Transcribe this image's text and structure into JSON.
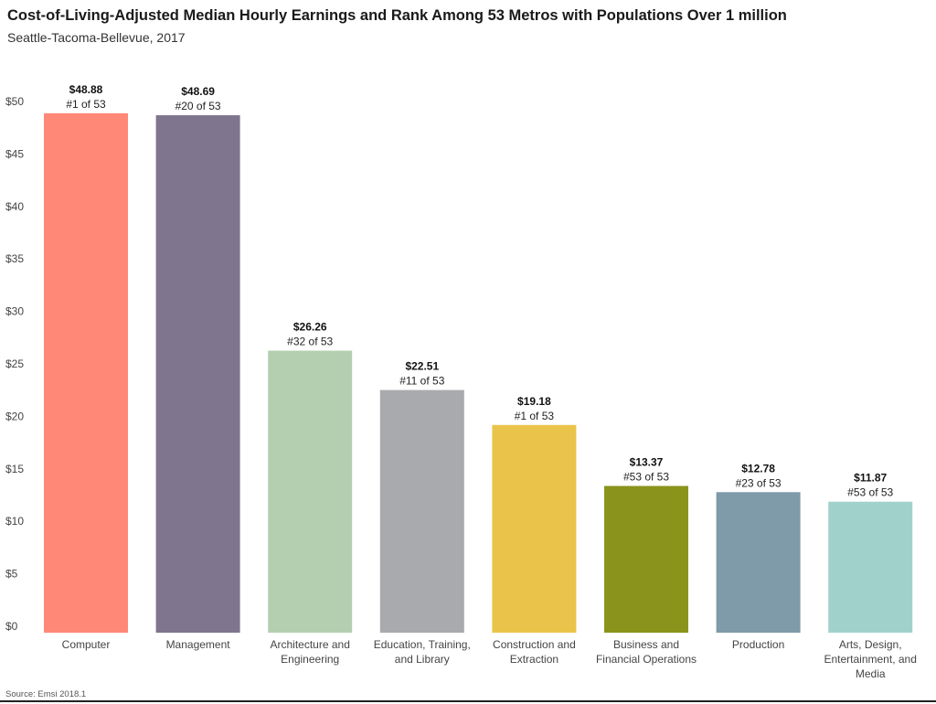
{
  "header": {
    "title": "Cost-of-Living-Adjusted Median Hourly Earnings and Rank Among 53 Metros with Populations Over 1 million",
    "subtitle": "Seattle-Tacoma-Bellevue, 2017"
  },
  "footer": {
    "source": "Source: Emsi 2018.1"
  },
  "chart_data": {
    "type": "bar",
    "title": "Cost-of-Living-Adjusted Median Hourly Earnings and Rank Among 53 Metros with Populations Over 1 million",
    "subtitle": "Seattle-Tacoma-Bellevue, 2017",
    "xlabel": "",
    "ylabel": "",
    "ylim": [
      0,
      50
    ],
    "yticks": [
      "$0",
      "$5",
      "$10",
      "$15",
      "$20",
      "$25",
      "$30",
      "$35",
      "$40",
      "$45",
      "$50"
    ],
    "grid": false,
    "legend": "none",
    "categories": [
      [
        "Computer"
      ],
      [
        "Management"
      ],
      [
        "Architecture and",
        "Engineering"
      ],
      [
        "Education, Training,",
        "and Library"
      ],
      [
        "Construction and",
        "Extraction"
      ],
      [
        "Business and",
        "Financial Operations"
      ],
      [
        "Production"
      ],
      [
        "Arts, Design,",
        "Entertainment, and",
        "Media"
      ]
    ],
    "values": [
      48.88,
      48.69,
      26.26,
      22.51,
      19.18,
      13.37,
      12.78,
      11.87
    ],
    "value_labels": [
      "$48.88",
      "$48.69",
      "$26.26",
      "$22.51",
      "$19.18",
      "$13.37",
      "$12.78",
      "$11.87"
    ],
    "rank_labels": [
      "#1 of 53",
      "#20 of 53",
      "#32 of 53",
      "#11 of 53",
      "#1 of 53",
      "#53 of 53",
      "#23 of 53",
      "#53 of 53"
    ],
    "colors": [
      "#ff8877",
      "#7f758f",
      "#b3cfb0",
      "#a9aaad",
      "#eac44a",
      "#8a941c",
      "#7f9aa8",
      "#a0d2cb"
    ]
  }
}
